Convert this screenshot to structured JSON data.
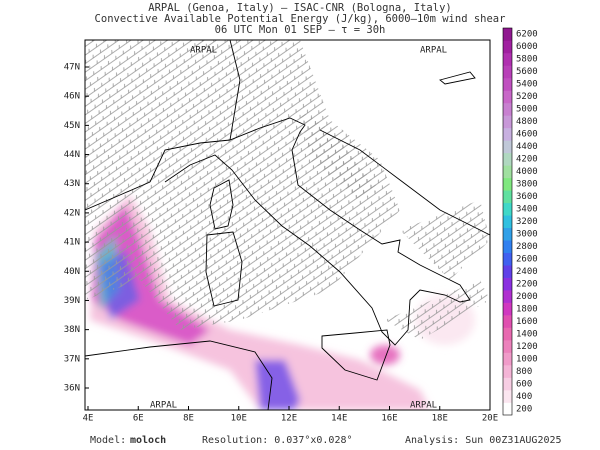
{
  "header": {
    "lines": [
      "ARPAL (Genoa, Italy)  –  ISAC-CNR (Bologna, Italy)",
      "Convective Available Potential Energy (J/kg), 6000–10m wind shear",
      "06 UTC Mon 01 SEP  –  τ = 30h"
    ]
  },
  "map": {
    "latitude_labels": [
      "36N",
      "37N",
      "38N",
      "39N",
      "40N",
      "41N",
      "42N",
      "43N",
      "44N",
      "45N",
      "46N",
      "47N"
    ],
    "longitude_labels": [
      "4E",
      "6E",
      "8E",
      "10E",
      "12E",
      "14E",
      "16E",
      "18E",
      "20E"
    ],
    "watermark": "ARPAL"
  },
  "colorbar": {
    "labels": [
      "200",
      "400",
      "600",
      "800",
      "1000",
      "1200",
      "1400",
      "1600",
      "1800",
      "2000",
      "2200",
      "2400",
      "2600",
      "2800",
      "3000",
      "3200",
      "3400",
      "3600",
      "3800",
      "4000",
      "4200",
      "4400",
      "4600",
      "4800",
      "5000",
      "5200",
      "5400",
      "5600",
      "5800",
      "6000",
      "6200"
    ],
    "colors": [
      "#ffffff",
      "#fbe6f0",
      "#f7cde3",
      "#f4b4d6",
      "#f09bc9",
      "#ec82bc",
      "#e869b0",
      "#e050b0",
      "#d038c0",
      "#b030d0",
      "#8a30e0",
      "#6040e8",
      "#4060f0",
      "#3080f0",
      "#30a0e8",
      "#30c0e0",
      "#40d8c8",
      "#60e0a0",
      "#80e880",
      "#a0e0a0",
      "#b0d8c0",
      "#c0c8d8",
      "#c8b0e0",
      "#c898d8",
      "#c880d0",
      "#c868c8",
      "#c050c0",
      "#b840b8",
      "#b030b0",
      "#a020a0",
      "#901890"
    ]
  },
  "footer": {
    "model_label": "Model:",
    "model": "moloch",
    "resolution": "Resolution: 0.037°x0.028°",
    "analysis": "Analysis: Sun 00Z31AUG2025"
  }
}
